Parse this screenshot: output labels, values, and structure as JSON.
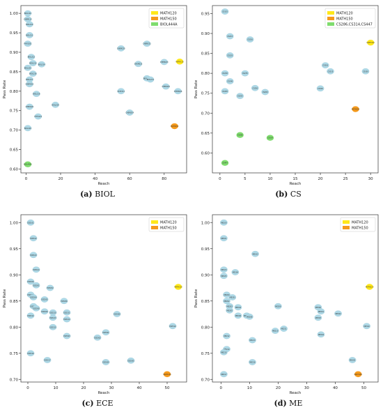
{
  "colors": {
    "node": "#add8e6",
    "math120": "#ffe81a",
    "math150": "#f59a1c",
    "third": "#7fdc6e",
    "axis": "#333333",
    "text": "#222222"
  },
  "captions": [
    {
      "tag": "(a)",
      "name": "BIOL"
    },
    {
      "tag": "(b)",
      "name": "CS"
    },
    {
      "tag": "(c)",
      "name": "ECE"
    },
    {
      "tag": "(d)",
      "name": "ME"
    }
  ],
  "chart_data": [
    {
      "type": "scatter",
      "title": "",
      "xlabel": "Reach",
      "ylabel": "Pass Rate",
      "xlim": [
        -3,
        93
      ],
      "ylim": [
        0.59,
        1.02
      ],
      "xticks": [
        0,
        20,
        40,
        60,
        80
      ],
      "yticks": [
        0.6,
        0.65,
        0.7,
        0.75,
        0.8,
        0.85,
        0.9,
        0.95,
        1.0
      ],
      "legend": [
        {
          "label": "MATH120",
          "color": "#ffe81a"
        },
        {
          "label": "MATH150",
          "color": "#f59a1c"
        },
        {
          "label": "BIOL444A",
          "color": "#7fdc6e"
        }
      ],
      "legend_position": "top-right",
      "points": [
        {
          "x": 1,
          "y": 1.0,
          "label": "BIOL110",
          "kind": "node"
        },
        {
          "x": 1,
          "y": 0.985,
          "label": "CHEM112",
          "kind": "node"
        },
        {
          "x": 2,
          "y": 0.972,
          "label": "BIOL210",
          "kind": "node"
        },
        {
          "x": 2,
          "y": 0.944,
          "label": "BIOL211",
          "kind": "node"
        },
        {
          "x": 1,
          "y": 0.922,
          "label": "PHYS102",
          "kind": "node"
        },
        {
          "x": 3,
          "y": 0.888,
          "label": "BIOL212",
          "kind": "node"
        },
        {
          "x": 4,
          "y": 0.872,
          "label": "BIOL213",
          "kind": "node"
        },
        {
          "x": 9,
          "y": 0.869,
          "label": "BIOL214",
          "kind": "node"
        },
        {
          "x": 1,
          "y": 0.86,
          "label": "BIOL215",
          "kind": "node"
        },
        {
          "x": 4,
          "y": 0.845,
          "label": "BIOL216",
          "kind": "node"
        },
        {
          "x": 2,
          "y": 0.83,
          "label": "BIOL217",
          "kind": "node"
        },
        {
          "x": 2,
          "y": 0.818,
          "label": "CHEM110",
          "kind": "node"
        },
        {
          "x": 6,
          "y": 0.793,
          "label": "BIOL218",
          "kind": "node"
        },
        {
          "x": 17,
          "y": 0.765,
          "label": "BIOL219",
          "kind": "node"
        },
        {
          "x": 2,
          "y": 0.76,
          "label": "CHEM120",
          "kind": "node"
        },
        {
          "x": 7,
          "y": 0.735,
          "label": "PHYS121",
          "kind": "node"
        },
        {
          "x": 1,
          "y": 0.705,
          "label": "BIOL220",
          "kind": "node"
        },
        {
          "x": 1,
          "y": 0.612,
          "label": "BIOL444A",
          "kind": "third"
        },
        {
          "x": 55,
          "y": 0.91,
          "label": "CHEM220",
          "kind": "node"
        },
        {
          "x": 70,
          "y": 0.922,
          "label": "CHEM221",
          "kind": "node"
        },
        {
          "x": 65,
          "y": 0.87,
          "label": "CHEM222",
          "kind": "node"
        },
        {
          "x": 80,
          "y": 0.875,
          "label": "CHEM223",
          "kind": "node"
        },
        {
          "x": 55,
          "y": 0.8,
          "label": "STAT211",
          "kind": "node"
        },
        {
          "x": 60,
          "y": 0.745,
          "label": "CHEM224",
          "kind": "node"
        },
        {
          "x": 70,
          "y": 0.833,
          "label": "BIOL230",
          "kind": "node"
        },
        {
          "x": 72,
          "y": 0.83,
          "label": "BIOL231",
          "kind": "node"
        },
        {
          "x": 81,
          "y": 0.812,
          "label": "CHEM225",
          "kind": "node"
        },
        {
          "x": 88,
          "y": 0.8,
          "label": "CHEM226",
          "kind": "node"
        },
        {
          "x": 89,
          "y": 0.876,
          "label": "MATH120",
          "kind": "math120"
        },
        {
          "x": 86,
          "y": 0.71,
          "label": "MATH150",
          "kind": "math150"
        }
      ]
    },
    {
      "type": "scatter",
      "title": "",
      "xlabel": "Reach",
      "ylabel": "Pass Rate",
      "xlim": [
        -1.5,
        31.5
      ],
      "ylim": [
        0.55,
        0.97
      ],
      "xticks": [
        0,
        5,
        10,
        15,
        20,
        25,
        30
      ],
      "yticks": [
        0.6,
        0.65,
        0.7,
        0.75,
        0.8,
        0.85,
        0.9,
        0.95
      ],
      "legend": [
        {
          "label": "MATH120",
          "color": "#ffe81a"
        },
        {
          "label": "MATH150",
          "color": "#f59a1c"
        },
        {
          "label": "CS286,CS314,CS447",
          "color": "#7fdc6e"
        }
      ],
      "legend_position": "top-right",
      "points": [
        {
          "x": 1,
          "y": 0.955,
          "label": "CS115",
          "kind": "node"
        },
        {
          "x": 2,
          "y": 0.893,
          "label": "CS215",
          "kind": "node"
        },
        {
          "x": 6,
          "y": 0.885,
          "label": "CS216",
          "kind": "node"
        },
        {
          "x": 2,
          "y": 0.845,
          "label": "CS225",
          "kind": "node"
        },
        {
          "x": 1,
          "y": 0.8,
          "label": "CS230",
          "kind": "node"
        },
        {
          "x": 5,
          "y": 0.8,
          "label": "CS235",
          "kind": "node"
        },
        {
          "x": 2,
          "y": 0.78,
          "label": "CS240",
          "kind": "node"
        },
        {
          "x": 1,
          "y": 0.755,
          "label": "CS245",
          "kind": "node"
        },
        {
          "x": 7,
          "y": 0.763,
          "label": "CS250",
          "kind": "node"
        },
        {
          "x": 4,
          "y": 0.743,
          "label": "CS255",
          "kind": "node"
        },
        {
          "x": 9,
          "y": 0.753,
          "label": "CS260",
          "kind": "node"
        },
        {
          "x": 21,
          "y": 0.82,
          "label": "CS310",
          "kind": "node"
        },
        {
          "x": 22,
          "y": 0.805,
          "label": "CS315",
          "kind": "node"
        },
        {
          "x": 20,
          "y": 0.762,
          "label": "CS320",
          "kind": "node"
        },
        {
          "x": 29,
          "y": 0.805,
          "label": "CS330",
          "kind": "node"
        },
        {
          "x": 30,
          "y": 0.877,
          "label": "MATH120",
          "kind": "math120"
        },
        {
          "x": 27,
          "y": 0.71,
          "label": "MATH150",
          "kind": "math150"
        },
        {
          "x": 4,
          "y": 0.645,
          "label": "CS286",
          "kind": "third"
        },
        {
          "x": 10,
          "y": 0.638,
          "label": "CS314",
          "kind": "third"
        },
        {
          "x": 1,
          "y": 0.575,
          "label": "CS447",
          "kind": "third"
        }
      ]
    },
    {
      "type": "scatter",
      "title": "",
      "xlabel": "Reach",
      "ylabel": "Pass Rate",
      "xlim": [
        -2.5,
        57
      ],
      "ylim": [
        0.695,
        1.015
      ],
      "xticks": [
        0,
        10,
        20,
        30,
        40,
        50
      ],
      "yticks": [
        0.7,
        0.75,
        0.8,
        0.85,
        0.9,
        0.95,
        1.0
      ],
      "legend": [
        {
          "label": "MATH120",
          "color": "#ffe81a"
        },
        {
          "label": "MATH150",
          "color": "#f59a1c"
        }
      ],
      "legend_position": "top-right",
      "points": [
        {
          "x": 1,
          "y": 1.0,
          "label": "ECE101",
          "kind": "node"
        },
        {
          "x": 2,
          "y": 0.97,
          "label": "ECE102",
          "kind": "node"
        },
        {
          "x": 2,
          "y": 0.938,
          "label": "ECE103",
          "kind": "node"
        },
        {
          "x": 3,
          "y": 0.91,
          "label": "ECE104",
          "kind": "node"
        },
        {
          "x": 1,
          "y": 0.887,
          "label": "ECE200",
          "kind": "node"
        },
        {
          "x": 3,
          "y": 0.88,
          "label": "ECE201",
          "kind": "node"
        },
        {
          "x": 8,
          "y": 0.875,
          "label": "ECE202",
          "kind": "node"
        },
        {
          "x": 1,
          "y": 0.862,
          "label": "ECE203",
          "kind": "node"
        },
        {
          "x": 2,
          "y": 0.857,
          "label": "ECE204",
          "kind": "node"
        },
        {
          "x": 6,
          "y": 0.853,
          "label": "ECE205",
          "kind": "node"
        },
        {
          "x": 13,
          "y": 0.85,
          "label": "ECE206",
          "kind": "node"
        },
        {
          "x": 2,
          "y": 0.84,
          "label": "ECE207",
          "kind": "node"
        },
        {
          "x": 3,
          "y": 0.836,
          "label": "ECE208",
          "kind": "node"
        },
        {
          "x": 6,
          "y": 0.83,
          "label": "ECE209",
          "kind": "node"
        },
        {
          "x": 9,
          "y": 0.828,
          "label": "ECE210",
          "kind": "node"
        },
        {
          "x": 14,
          "y": 0.828,
          "label": "ECE211",
          "kind": "node"
        },
        {
          "x": 1,
          "y": 0.822,
          "label": "ECE212",
          "kind": "node"
        },
        {
          "x": 9,
          "y": 0.818,
          "label": "ECE213",
          "kind": "node"
        },
        {
          "x": 14,
          "y": 0.815,
          "label": "ECE214",
          "kind": "node"
        },
        {
          "x": 9,
          "y": 0.8,
          "label": "ECE215",
          "kind": "node"
        },
        {
          "x": 32,
          "y": 0.825,
          "label": "ECE300",
          "kind": "node"
        },
        {
          "x": 28,
          "y": 0.79,
          "label": "ECE301",
          "kind": "node"
        },
        {
          "x": 25,
          "y": 0.78,
          "label": "ECE302",
          "kind": "node"
        },
        {
          "x": 14,
          "y": 0.783,
          "label": "ECE303",
          "kind": "node"
        },
        {
          "x": 52,
          "y": 0.802,
          "label": "ECE310",
          "kind": "node"
        },
        {
          "x": 1,
          "y": 0.75,
          "label": "ECE216",
          "kind": "node"
        },
        {
          "x": 7,
          "y": 0.737,
          "label": "ECE217",
          "kind": "node"
        },
        {
          "x": 28,
          "y": 0.733,
          "label": "ECE304",
          "kind": "node"
        },
        {
          "x": 37,
          "y": 0.736,
          "label": "ECE305",
          "kind": "node"
        },
        {
          "x": 54,
          "y": 0.877,
          "label": "MATH120",
          "kind": "math120"
        },
        {
          "x": 50,
          "y": 0.71,
          "label": "MATH150",
          "kind": "math150"
        }
      ]
    },
    {
      "type": "scatter",
      "title": "",
      "xlabel": "Reach",
      "ylabel": "Pass Rate",
      "xlim": [
        -3,
        55
      ],
      "ylim": [
        0.695,
        1.015
      ],
      "xticks": [
        0,
        10,
        20,
        30,
        40,
        50
      ],
      "yticks": [
        0.7,
        0.75,
        0.8,
        0.85,
        0.9,
        0.95,
        1.0
      ],
      "legend": [
        {
          "label": "MATH120",
          "color": "#ffe81a"
        },
        {
          "label": "MATH150",
          "color": "#f59a1c"
        }
      ],
      "legend_position": "top-right",
      "points": [
        {
          "x": 1,
          "y": 1.0,
          "label": "ME100",
          "kind": "node"
        },
        {
          "x": 1,
          "y": 0.97,
          "label": "ME101",
          "kind": "node"
        },
        {
          "x": 12,
          "y": 0.94,
          "label": "ME102",
          "kind": "node"
        },
        {
          "x": 1,
          "y": 0.91,
          "label": "ME103",
          "kind": "node"
        },
        {
          "x": 5,
          "y": 0.905,
          "label": "ME104",
          "kind": "node"
        },
        {
          "x": 1,
          "y": 0.898,
          "label": "ME105",
          "kind": "node"
        },
        {
          "x": 2,
          "y": 0.862,
          "label": "ME200",
          "kind": "node"
        },
        {
          "x": 4,
          "y": 0.857,
          "label": "ME201",
          "kind": "node"
        },
        {
          "x": 2,
          "y": 0.85,
          "label": "ME202",
          "kind": "node"
        },
        {
          "x": 3,
          "y": 0.84,
          "label": "ME203",
          "kind": "node"
        },
        {
          "x": 6,
          "y": 0.838,
          "label": "ME204",
          "kind": "node"
        },
        {
          "x": 3,
          "y": 0.832,
          "label": "ME205",
          "kind": "node"
        },
        {
          "x": 6,
          "y": 0.822,
          "label": "ME206",
          "kind": "node"
        },
        {
          "x": 9,
          "y": 0.822,
          "label": "ME207",
          "kind": "node"
        },
        {
          "x": 10,
          "y": 0.82,
          "label": "ME208",
          "kind": "node"
        },
        {
          "x": 20,
          "y": 0.84,
          "label": "ME209",
          "kind": "node"
        },
        {
          "x": 34,
          "y": 0.838,
          "label": "ME300",
          "kind": "node"
        },
        {
          "x": 35,
          "y": 0.83,
          "label": "ME301",
          "kind": "node"
        },
        {
          "x": 41,
          "y": 0.826,
          "label": "ME302",
          "kind": "node"
        },
        {
          "x": 34,
          "y": 0.818,
          "label": "ME303",
          "kind": "node"
        },
        {
          "x": 51,
          "y": 0.802,
          "label": "ME310",
          "kind": "node"
        },
        {
          "x": 19,
          "y": 0.793,
          "label": "ME210",
          "kind": "node"
        },
        {
          "x": 22,
          "y": 0.797,
          "label": "ME211",
          "kind": "node"
        },
        {
          "x": 35,
          "y": 0.786,
          "label": "ME304",
          "kind": "node"
        },
        {
          "x": 2,
          "y": 0.783,
          "label": "ME212",
          "kind": "node"
        },
        {
          "x": 11,
          "y": 0.775,
          "label": "ME213",
          "kind": "node"
        },
        {
          "x": 2,
          "y": 0.758,
          "label": "ME214",
          "kind": "node"
        },
        {
          "x": 1,
          "y": 0.752,
          "label": "ME215",
          "kind": "node"
        },
        {
          "x": 11,
          "y": 0.733,
          "label": "ME216",
          "kind": "node"
        },
        {
          "x": 46,
          "y": 0.737,
          "label": "ME305",
          "kind": "node"
        },
        {
          "x": 1,
          "y": 0.71,
          "label": "ME217",
          "kind": "node"
        },
        {
          "x": 52,
          "y": 0.877,
          "label": "MATH120",
          "kind": "math120"
        },
        {
          "x": 48,
          "y": 0.71,
          "label": "MATH150",
          "kind": "math150"
        }
      ]
    }
  ]
}
